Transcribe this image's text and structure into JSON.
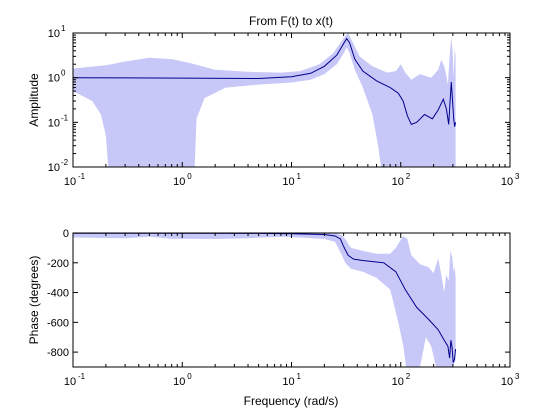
{
  "chart_data": [
    {
      "type": "line",
      "id": "amplitude",
      "title": "From F(t) to x(t)",
      "xlabel": "",
      "ylabel": "Amplitude",
      "xscale": "log",
      "yscale": "log",
      "xlim": [
        0.1,
        1000
      ],
      "ylim": [
        0.01,
        10
      ],
      "xticks": [
        {
          "base": "10",
          "exp": "-1",
          "v": 0.1
        },
        {
          "base": "10",
          "exp": "0",
          "v": 1
        },
        {
          "base": "10",
          "exp": "1",
          "v": 10
        },
        {
          "base": "10",
          "exp": "2",
          "v": 100
        },
        {
          "base": "10",
          "exp": "3",
          "v": 1000
        }
      ],
      "yticks": [
        {
          "base": "10",
          "exp": "-2",
          "v": 0.01
        },
        {
          "base": "10",
          "exp": "-1",
          "v": 0.1
        },
        {
          "base": "10",
          "exp": "0",
          "v": 1
        },
        {
          "base": "10",
          "exp": "1",
          "v": 10
        }
      ],
      "line_color": "#00008b",
      "band_color": "#c8c8f8",
      "estimate": [
        [
          0.1,
          1.0
        ],
        [
          1,
          0.98
        ],
        [
          5,
          0.96
        ],
        [
          10,
          1.05
        ],
        [
          15,
          1.25
        ],
        [
          20,
          1.8
        ],
        [
          26,
          3.2
        ],
        [
          30,
          5.8
        ],
        [
          32,
          7.5
        ],
        [
          34,
          6.0
        ],
        [
          38,
          2.6
        ],
        [
          45,
          1.4
        ],
        [
          60,
          0.85
        ],
        [
          80,
          0.6
        ],
        [
          95,
          0.45
        ],
        [
          105,
          0.3
        ],
        [
          115,
          0.14
        ],
        [
          125,
          0.09
        ],
        [
          140,
          0.1
        ],
        [
          165,
          0.15
        ],
        [
          195,
          0.12
        ],
        [
          220,
          0.19
        ],
        [
          245,
          0.33
        ],
        [
          262,
          0.2
        ],
        [
          275,
          0.09
        ],
        [
          283,
          0.3
        ],
        [
          290,
          0.8
        ],
        [
          296,
          0.4
        ],
        [
          305,
          0.12
        ],
        [
          312,
          0.08
        ],
        [
          318,
          0.1
        ]
      ],
      "upper": [
        [
          0.1,
          1.6
        ],
        [
          0.2,
          1.9
        ],
        [
          0.3,
          2.3
        ],
        [
          0.5,
          2.8
        ],
        [
          0.8,
          2.6
        ],
        [
          1.2,
          2.1
        ],
        [
          2,
          1.5
        ],
        [
          4,
          1.35
        ],
        [
          8,
          1.3
        ],
        [
          12,
          1.4
        ],
        [
          18,
          2.0
        ],
        [
          24,
          3.5
        ],
        [
          28,
          6.0
        ],
        [
          31,
          8.5
        ],
        [
          33,
          10.0
        ],
        [
          36,
          6.5
        ],
        [
          42,
          3.0
        ],
        [
          55,
          1.8
        ],
        [
          75,
          1.3
        ],
        [
          90,
          1.4
        ],
        [
          100,
          2.0
        ],
        [
          110,
          1.3
        ],
        [
          125,
          0.9
        ],
        [
          150,
          1.2
        ],
        [
          190,
          1.0
        ],
        [
          220,
          1.5
        ],
        [
          235,
          2.5
        ],
        [
          250,
          1.8
        ],
        [
          260,
          1.2
        ],
        [
          270,
          0.7
        ],
        [
          280,
          3.0
        ],
        [
          290,
          8.0
        ],
        [
          298,
          4.0
        ],
        [
          305,
          1.0
        ],
        [
          312,
          4.5
        ],
        [
          318,
          3.0
        ]
      ],
      "lower": [
        [
          0.1,
          0.5
        ],
        [
          0.15,
          0.3
        ],
        [
          0.18,
          0.15
        ],
        [
          0.2,
          0.05
        ],
        [
          0.21,
          0.01
        ],
        [
          1.3,
          0.01
        ],
        [
          1.35,
          0.12
        ],
        [
          1.6,
          0.35
        ],
        [
          2.5,
          0.6
        ],
        [
          5,
          0.7
        ],
        [
          10,
          0.78
        ],
        [
          15,
          0.9
        ],
        [
          20,
          1.2
        ],
        [
          26,
          2.0
        ],
        [
          30,
          3.5
        ],
        [
          32,
          4.8
        ],
        [
          34,
          3.5
        ],
        [
          38,
          1.5
        ],
        [
          45,
          0.6
        ],
        [
          55,
          0.15
        ],
        [
          62,
          0.03
        ],
        [
          66,
          0.01
        ],
        [
          318,
          0.01
        ]
      ]
    },
    {
      "type": "line",
      "id": "phase",
      "title": "",
      "xlabel": "Frequency (rad/s)",
      "ylabel": "Phase (degrees)",
      "xscale": "log",
      "yscale": "linear",
      "xlim": [
        0.1,
        1000
      ],
      "ylim": [
        -900,
        0
      ],
      "xticks": [
        {
          "base": "10",
          "exp": "-1",
          "v": 0.1
        },
        {
          "base": "10",
          "exp": "0",
          "v": 1
        },
        {
          "base": "10",
          "exp": "1",
          "v": 10
        },
        {
          "base": "10",
          "exp": "2",
          "v": 100
        },
        {
          "base": "10",
          "exp": "3",
          "v": 1000
        }
      ],
      "yticks": [
        {
          "label": "0",
          "v": 0
        },
        {
          "label": "-200",
          "v": -200
        },
        {
          "label": "-400",
          "v": -400
        },
        {
          "label": "-600",
          "v": -600
        },
        {
          "label": "-800",
          "v": -800
        }
      ],
      "line_color": "#00008b",
      "band_color": "#c8c8f8",
      "estimate": [
        [
          0.1,
          -2
        ],
        [
          1,
          -2
        ],
        [
          5,
          -3
        ],
        [
          10,
          -5
        ],
        [
          20,
          -10
        ],
        [
          25,
          -20
        ],
        [
          28,
          -40
        ],
        [
          30,
          -90
        ],
        [
          33,
          -150
        ],
        [
          37,
          -175
        ],
        [
          45,
          -185
        ],
        [
          70,
          -200
        ],
        [
          90,
          -260
        ],
        [
          110,
          -380
        ],
        [
          140,
          -500
        ],
        [
          180,
          -580
        ],
        [
          220,
          -650
        ],
        [
          250,
          -720
        ],
        [
          270,
          -760
        ],
        [
          280,
          -840
        ],
        [
          288,
          -720
        ],
        [
          295,
          -770
        ],
        [
          302,
          -870
        ],
        [
          310,
          -850
        ],
        [
          318,
          -780
        ]
      ],
      "upper": [
        [
          0.1,
          0
        ],
        [
          1,
          0
        ],
        [
          10,
          0
        ],
        [
          25,
          0
        ],
        [
          29,
          -15
        ],
        [
          31,
          -40
        ],
        [
          35,
          -100
        ],
        [
          45,
          -120
        ],
        [
          60,
          -140
        ],
        [
          80,
          -140
        ],
        [
          90,
          -100
        ],
        [
          105,
          -20
        ],
        [
          115,
          -40
        ],
        [
          125,
          -150
        ],
        [
          150,
          -210
        ],
        [
          180,
          -230
        ],
        [
          200,
          -270
        ],
        [
          220,
          -170
        ],
        [
          240,
          -320
        ],
        [
          250,
          -400
        ],
        [
          260,
          -280
        ],
        [
          275,
          -320
        ],
        [
          285,
          -120
        ],
        [
          295,
          -160
        ],
        [
          305,
          -260
        ],
        [
          312,
          -230
        ],
        [
          318,
          -300
        ]
      ],
      "lower": [
        [
          0.1,
          -30
        ],
        [
          0.3,
          -35
        ],
        [
          0.5,
          -25
        ],
        [
          0.8,
          -38
        ],
        [
          2,
          -40
        ],
        [
          4,
          -35
        ],
        [
          8,
          -25
        ],
        [
          12,
          -30
        ],
        [
          20,
          -40
        ],
        [
          25,
          -60
        ],
        [
          29,
          -150
        ],
        [
          31,
          -200
        ],
        [
          35,
          -240
        ],
        [
          45,
          -260
        ],
        [
          60,
          -300
        ],
        [
          80,
          -380
        ],
        [
          95,
          -600
        ],
        [
          105,
          -750
        ],
        [
          112,
          -900
        ],
        [
          150,
          -900
        ],
        [
          170,
          -700
        ],
        [
          190,
          -760
        ],
        [
          210,
          -900
        ],
        [
          280,
          -900
        ],
        [
          300,
          -900
        ],
        [
          318,
          -850
        ]
      ]
    }
  ]
}
